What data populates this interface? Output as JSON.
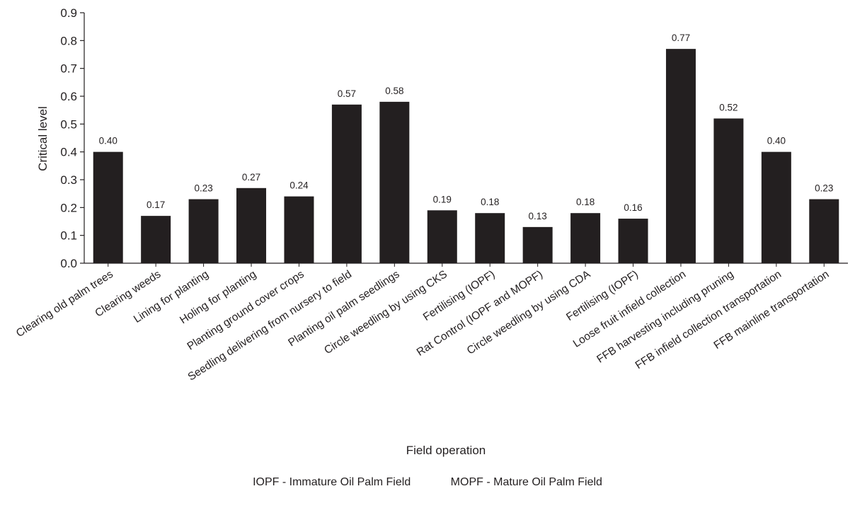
{
  "chart_data": {
    "type": "bar",
    "categories": [
      "Clearing old palm trees",
      "Clearing weeds",
      "Lining for planting",
      "Holing for planting",
      "Planting ground cover crops",
      "Seedling delivering from nursery to field",
      "Planting oil palm seedlings",
      "Circle weedling by using CKS",
      "Fertilising (IOPF)",
      "Rat Control (IOPF and MOPF)",
      "Circle weedling by using CDA",
      "Fertilising (IOPF)",
      "Loose fruit infield collection",
      "FFB harvesting including pruning",
      "FFB infield collection transportation",
      "FFB mainline transportation"
    ],
    "values": [
      0.4,
      0.17,
      0.23,
      0.27,
      0.24,
      0.57,
      0.58,
      0.19,
      0.18,
      0.13,
      0.18,
      0.16,
      0.77,
      0.52,
      0.4,
      0.23
    ],
    "data_labels": [
      "0.40",
      "0.17",
      "0.23",
      "0.27",
      "0.24",
      "0.57",
      "0.58",
      "0.19",
      "0.18",
      "0.13",
      "0.18",
      "0.16",
      "0.77",
      "0.52",
      "0.40",
      "0.23"
    ],
    "title": "",
    "xlabel": "Field operation",
    "ylabel": "Critical level",
    "ylim": [
      0,
      0.9
    ],
    "yticks": [
      "0.0",
      "0.1",
      "0.2",
      "0.3",
      "0.4",
      "0.5",
      "0.6",
      "0.7",
      "0.8",
      "0.9"
    ],
    "grid": false,
    "bar_color": "#231f20"
  },
  "footnote": {
    "iopf": "IOPF - Immature Oil Palm Field",
    "mopf": "MOPF - Mature Oil Palm Field"
  }
}
